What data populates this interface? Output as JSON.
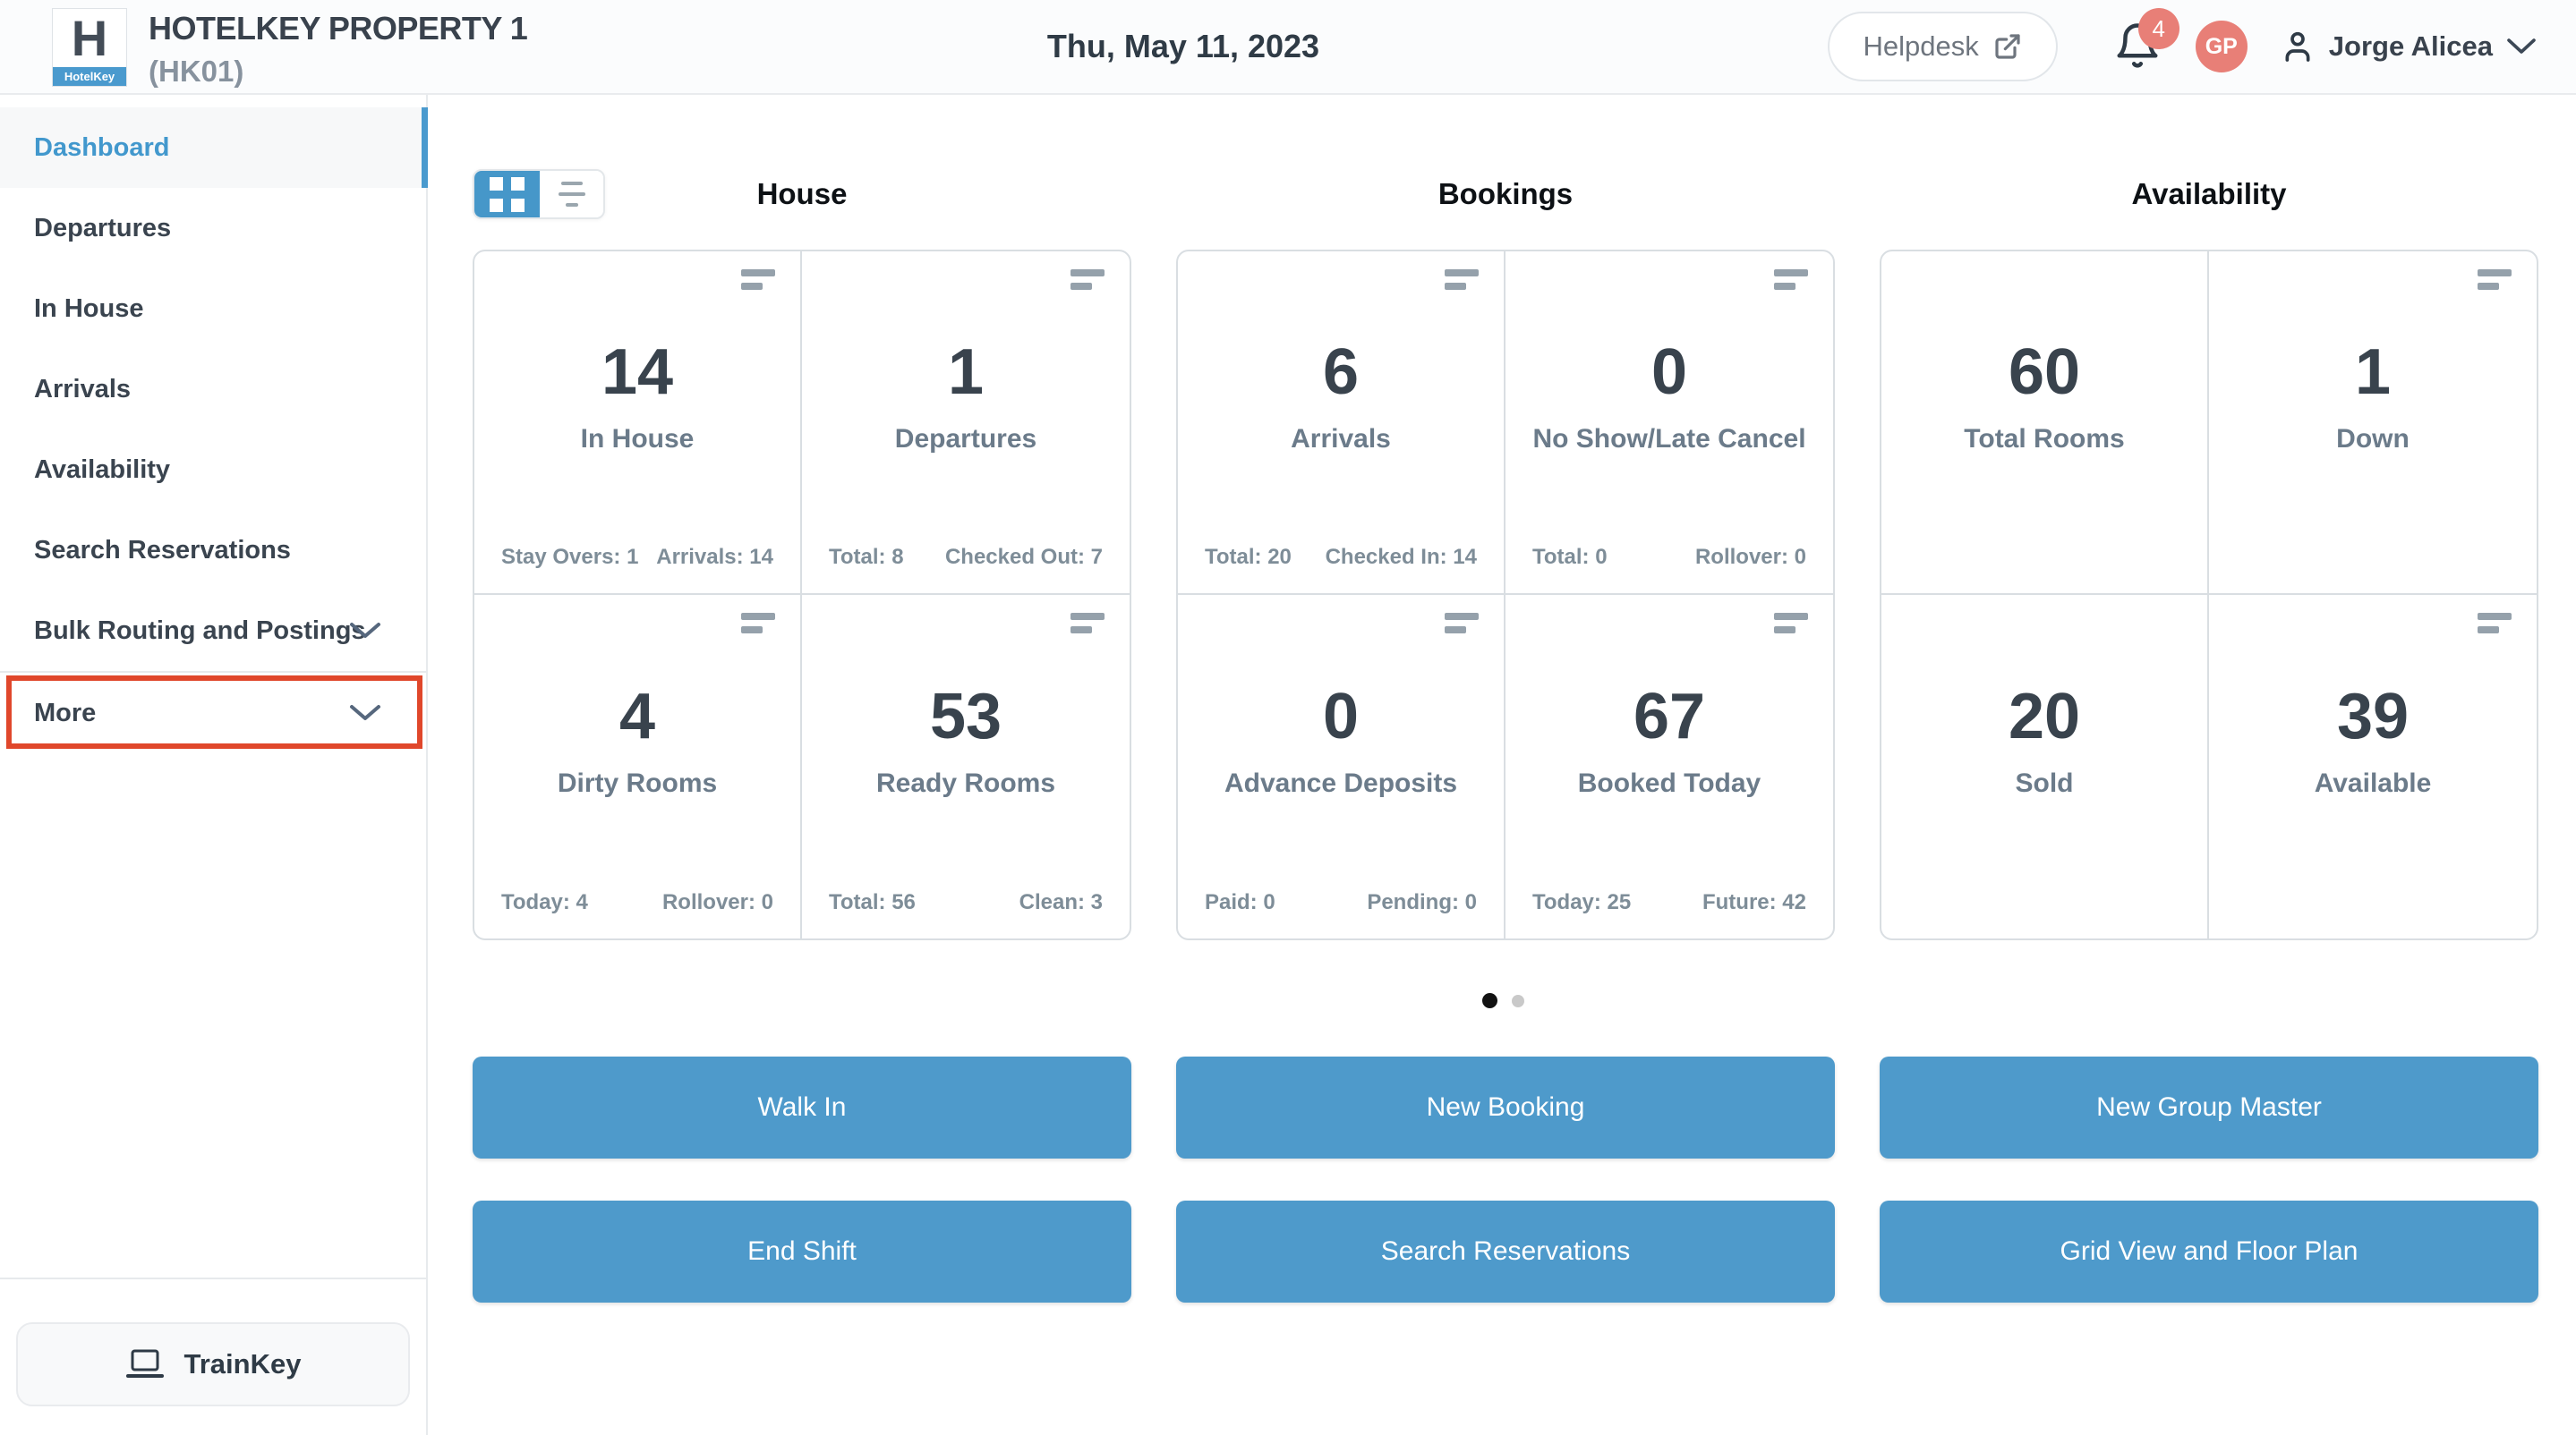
{
  "header": {
    "logo_letter": "H",
    "logo_caption": "HotelKey",
    "brand_title": "HOTELKEY PROPERTY 1",
    "brand_code": "(HK01)",
    "date": "Thu, May 11, 2023",
    "helpdesk_label": "Helpdesk",
    "notification_count": "4",
    "avatar_initials": "GP",
    "user_name": "Jorge Alicea"
  },
  "sidebar": {
    "items": [
      {
        "label": "Dashboard",
        "active": true
      },
      {
        "label": "Departures"
      },
      {
        "label": "In House"
      },
      {
        "label": "Arrivals"
      },
      {
        "label": "Availability"
      },
      {
        "label": "Search Reservations"
      },
      {
        "label": "Bulk Routing and Postings",
        "chevron": true
      },
      {
        "label": "More",
        "chevron": true,
        "divider_above": true,
        "highlighted": true
      }
    ],
    "trainkey_label": "TrainKey"
  },
  "sections": [
    {
      "title": "House",
      "cards": [
        {
          "value": "14",
          "label": "In House",
          "menu_icon": true,
          "footer": {
            "left": "Stay Overs: 1",
            "right": "Arrivals: 14"
          }
        },
        {
          "value": "1",
          "label": "Departures",
          "menu_icon": true,
          "footer": {
            "left": "Total: 8",
            "right": "Checked Out: 7"
          }
        },
        {
          "value": "4",
          "label": "Dirty Rooms",
          "menu_icon": true,
          "footer": {
            "left": "Today: 4",
            "right": "Rollover: 0"
          }
        },
        {
          "value": "53",
          "label": "Ready Rooms",
          "menu_icon": true,
          "footer": {
            "left": "Total: 56",
            "right": "Clean: 3"
          }
        }
      ]
    },
    {
      "title": "Bookings",
      "cards": [
        {
          "value": "6",
          "label": "Arrivals",
          "menu_icon": true,
          "footer": {
            "left": "Total: 20",
            "right": "Checked In: 14"
          }
        },
        {
          "value": "0",
          "label": "No Show/Late Cancel",
          "menu_icon": true,
          "footer": {
            "left": "Total: 0",
            "right": "Rollover: 0"
          }
        },
        {
          "value": "0",
          "label": "Advance Deposits",
          "menu_icon": true,
          "footer": {
            "left": "Paid: 0",
            "right": "Pending: 0"
          }
        },
        {
          "value": "67",
          "label": "Booked Today",
          "menu_icon": true,
          "footer": {
            "left": "Today: 25",
            "right": "Future: 42"
          }
        }
      ]
    },
    {
      "title": "Availability",
      "cards": [
        {
          "value": "60",
          "label": "Total Rooms",
          "menu_icon": false
        },
        {
          "value": "1",
          "label": "Down",
          "menu_icon": true
        },
        {
          "value": "20",
          "label": "Sold",
          "menu_icon": false
        },
        {
          "value": "39",
          "label": "Available",
          "menu_icon": true
        }
      ]
    }
  ],
  "pagination": {
    "count": 2,
    "active_index": 0
  },
  "actions": [
    [
      "Walk In",
      "New Booking",
      "New Group Master"
    ],
    [
      "End Shift",
      "Search Reservations",
      "Grid View and Floor Plan"
    ]
  ],
  "icons": {
    "helpdesk": "external-link-icon",
    "notifications": "bell-icon",
    "user": "person-icon",
    "user_menu": "chevron-down-icon",
    "sidebar_expand": "chevron-down-icon",
    "trainkey": "laptop-icon",
    "view_grid": "grid-icon",
    "view_list": "list-icon",
    "card_menu": "menu-bars-icon"
  },
  "colors": {
    "accent_blue": "#4e9acb",
    "toggle_blue": "#4697c9",
    "active_link_blue": "#4298cd",
    "coral": "#e87f77",
    "annotation_red": "#e0472b",
    "dot_active": "#121212",
    "dot_inactive": "#c9c9c9"
  }
}
